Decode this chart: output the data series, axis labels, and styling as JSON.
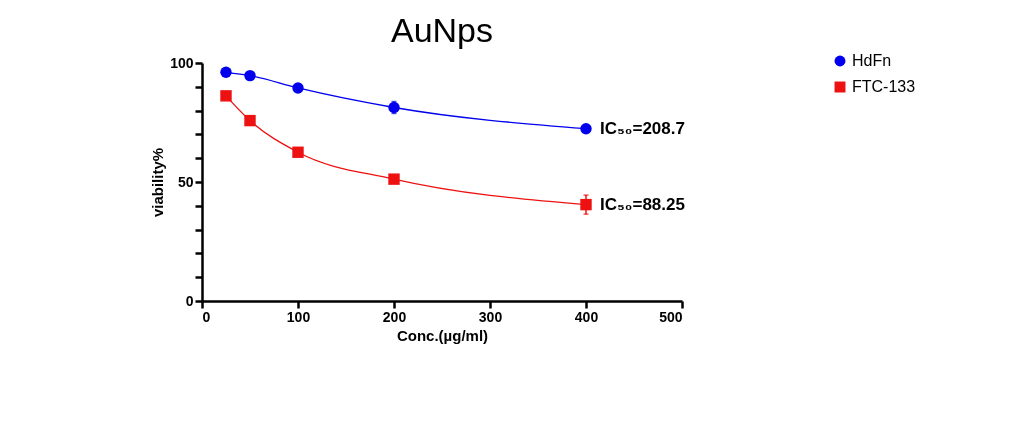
{
  "chart_data": {
    "type": "line",
    "title": "AuNps",
    "xlabel": "Conc.(µg/ml)",
    "ylabel": "viability%",
    "x": [
      25,
      50,
      100,
      200,
      400
    ],
    "series": [
      {
        "name": "HdFn",
        "color": "#0000ee",
        "marker": "circle",
        "values": [
          96.1,
          94.7,
          89.5,
          81.3,
          72.4
        ],
        "errors": [
          null,
          null,
          null,
          2.5,
          null
        ]
      },
      {
        "name": "FTC-133",
        "color": "#ee1111",
        "marker": "square",
        "values": [
          86.2,
          75.8,
          62.5,
          51.2,
          40.5
        ],
        "errors": [
          null,
          null,
          null,
          null,
          4
        ]
      }
    ],
    "xlim": [
      0,
      500
    ],
    "xticks": [
      0,
      100,
      200,
      300,
      400,
      500
    ],
    "ylim": [
      0,
      100
    ],
    "yticks": [
      0,
      {
        "value": 10,
        "label": null
      },
      {
        "value": 20,
        "label": null
      },
      {
        "value": 30,
        "label": null
      },
      {
        "value": 40,
        "label": null
      },
      50,
      {
        "value": 60,
        "label": null
      },
      {
        "value": 70,
        "label": null
      },
      {
        "value": 80,
        "label": null
      },
      {
        "value": 90,
        "label": null
      },
      100
    ],
    "annotations": [
      {
        "text": "IC₅₀=208.7",
        "x": 400,
        "y": 72.4
      },
      {
        "text": "IC₅₀=88.25",
        "x": 400,
        "y": 40.5
      }
    ],
    "legend": "top right",
    "grid": false,
    "line_style": "solid"
  }
}
